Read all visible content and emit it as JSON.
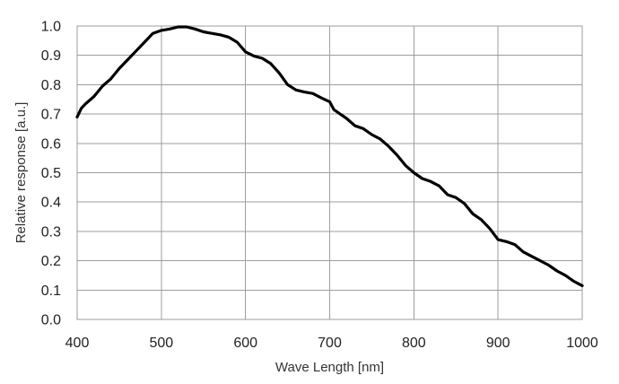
{
  "chart_data": {
    "type": "line",
    "title": "",
    "xlabel": "Wave Length [nm]",
    "ylabel": "Relative response [a.u.]",
    "xlim": [
      400,
      1000
    ],
    "ylim": [
      0.0,
      1.0
    ],
    "grid": true,
    "legend": "none",
    "x_ticks": [
      400,
      500,
      600,
      700,
      800,
      900,
      1000
    ],
    "y_ticks": [
      0.0,
      0.1,
      0.2,
      0.3,
      0.4,
      0.5,
      0.6,
      0.7,
      0.8,
      0.9,
      1.0
    ],
    "x_tick_labels": [
      "400",
      "500",
      "600",
      "700",
      "800",
      "900",
      "1000"
    ],
    "y_tick_labels": [
      "0.0",
      "0.1",
      "0.2",
      "0.3",
      "0.4",
      "0.5",
      "0.6",
      "0.7",
      "0.8",
      "0.9",
      "1.0"
    ],
    "series": [
      {
        "color": "#000000",
        "x": [
          400,
          405,
          410,
          420,
          430,
          440,
          450,
          460,
          470,
          480,
          490,
          500,
          510,
          520,
          530,
          540,
          550,
          560,
          570,
          580,
          590,
          600,
          610,
          620,
          630,
          640,
          650,
          660,
          670,
          680,
          690,
          700,
          705,
          710,
          720,
          730,
          740,
          750,
          760,
          770,
          780,
          790,
          800,
          810,
          820,
          830,
          840,
          850,
          860,
          870,
          880,
          890,
          900,
          910,
          920,
          930,
          940,
          950,
          960,
          970,
          980,
          990,
          1000
        ],
        "y": [
          0.69,
          0.72,
          0.735,
          0.76,
          0.795,
          0.82,
          0.855,
          0.885,
          0.915,
          0.945,
          0.975,
          0.985,
          0.99,
          0.997,
          0.997,
          0.99,
          0.98,
          0.975,
          0.97,
          0.962,
          0.945,
          0.912,
          0.898,
          0.89,
          0.872,
          0.84,
          0.8,
          0.782,
          0.775,
          0.77,
          0.755,
          0.742,
          0.715,
          0.705,
          0.685,
          0.66,
          0.65,
          0.63,
          0.615,
          0.59,
          0.56,
          0.525,
          0.5,
          0.48,
          0.47,
          0.455,
          0.425,
          0.415,
          0.395,
          0.36,
          0.34,
          0.31,
          0.272,
          0.265,
          0.255,
          0.23,
          0.215,
          0.2,
          0.185,
          0.165,
          0.15,
          0.13,
          0.115
        ]
      }
    ]
  }
}
